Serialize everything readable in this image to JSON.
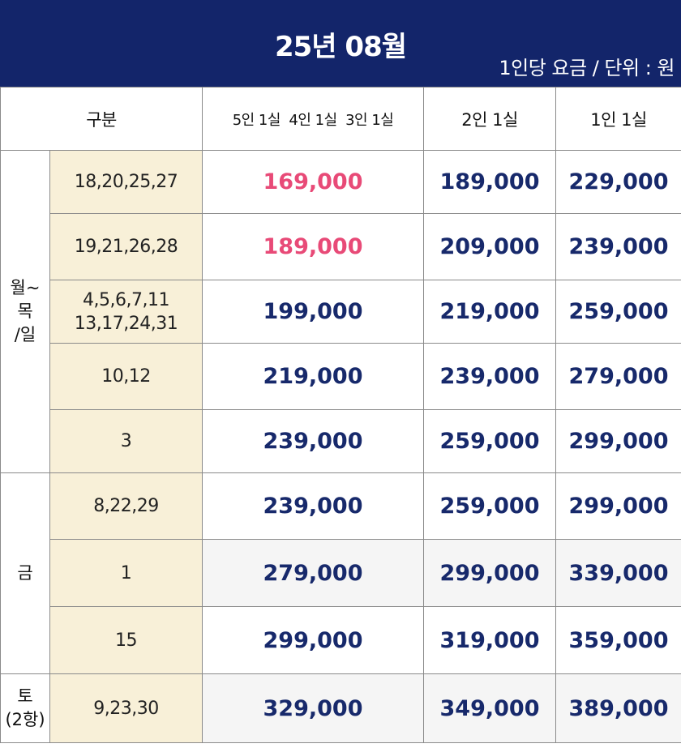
{
  "header": {
    "title": "25년 08월",
    "unit_note": "1인당 요금 / 단위 : 원"
  },
  "columns": {
    "category": "구분",
    "multi_room": "5인 1실  4인 1실  3인 1실",
    "double_room": "2인 1실",
    "single_room": "1인 1실"
  },
  "groups": {
    "weekday": [
      "월~",
      "목",
      "/일"
    ],
    "friday": "금",
    "saturday": [
      "토",
      "(2항)"
    ]
  },
  "rows": [
    {
      "dates": [
        "18,20,25,27"
      ],
      "multi": "169,000",
      "double": "189,000",
      "single": "229,000"
    },
    {
      "dates": [
        "19,21,26,28"
      ],
      "multi": "189,000",
      "double": "209,000",
      "single": "239,000"
    },
    {
      "dates": [
        "4,5,6,7,11",
        "13,17,24,31"
      ],
      "multi": "199,000",
      "double": "219,000",
      "single": "259,000"
    },
    {
      "dates": [
        "10,12"
      ],
      "multi": "219,000",
      "double": "239,000",
      "single": "279,000"
    },
    {
      "dates": [
        "3"
      ],
      "multi": "239,000",
      "double": "259,000",
      "single": "299,000"
    },
    {
      "dates": [
        "8,22,29"
      ],
      "multi": "239,000",
      "double": "259,000",
      "single": "299,000"
    },
    {
      "dates": [
        "1"
      ],
      "multi": "279,000",
      "double": "299,000",
      "single": "339,000"
    },
    {
      "dates": [
        "15"
      ],
      "multi": "299,000",
      "double": "319,000",
      "single": "359,000"
    },
    {
      "dates": [
        "9,23,30"
      ],
      "multi": "329,000",
      "double": "349,000",
      "single": "389,000"
    }
  ],
  "colors": {
    "header_bg": "#13256a",
    "price_text": "#17296b",
    "highlight_price": "#e84a77",
    "date_cell_bg": "#f8f0d8"
  }
}
